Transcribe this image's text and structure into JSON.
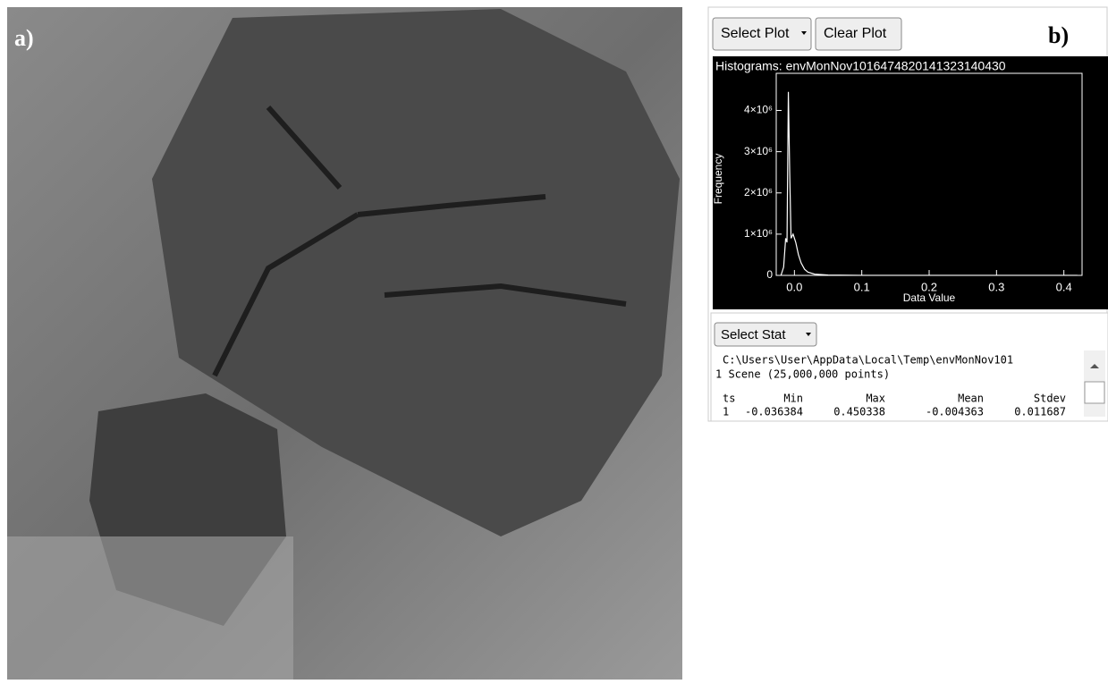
{
  "panel_labels": {
    "a": "a)",
    "b": "b)"
  },
  "toolbar": {
    "select_plot": "Select Plot",
    "clear_plot": "Clear Plot"
  },
  "chart_data": {
    "type": "line",
    "title": "Histograms: envMonNov1016474820141323140430",
    "xlabel": "Data Value",
    "ylabel": "Frequency",
    "x": [
      -0.02,
      -0.016,
      -0.013,
      -0.011,
      -0.009,
      -0.007,
      -0.005,
      -0.002,
      0.002,
      0.006,
      0.01,
      0.015,
      0.02,
      0.03,
      0.05,
      0.1,
      0.2,
      0.3,
      0.42
    ],
    "values": [
      0,
      200000,
      900000,
      800000,
      4450000,
      2500000,
      900000,
      1000000,
      800000,
      500000,
      300000,
      150000,
      80000,
      30000,
      10000,
      0,
      0,
      0,
      0
    ],
    "color": "#ffffff",
    "xlim": [
      -0.027,
      0.427
    ],
    "ylim": [
      0,
      4900000
    ],
    "xticks": [
      {
        "value": 0,
        "label": "0.0"
      },
      0.1,
      0.2,
      0.3,
      0.4
    ],
    "yticks": [
      0,
      {
        "value": 1000000,
        "label": "1×10⁶"
      },
      {
        "value": 2000000,
        "label": "2×10⁶"
      },
      {
        "value": 3000000,
        "label": "3×10⁶"
      },
      {
        "value": 4000000,
        "label": "4×10⁶"
      }
    ]
  },
  "stats": {
    "select_stat": "Select Stat",
    "path": "C:\\Users\\User\\AppData\\Local\\Temp\\envMonNov101",
    "scene": "1 Scene (25,000,000 points)",
    "header": [
      "ts",
      "Min",
      "Max",
      "Mean",
      "Stdev"
    ],
    "rows": [
      [
        "1",
        "-0.036384",
        "0.450338",
        "-0.004363",
        "0.011687"
      ]
    ]
  }
}
